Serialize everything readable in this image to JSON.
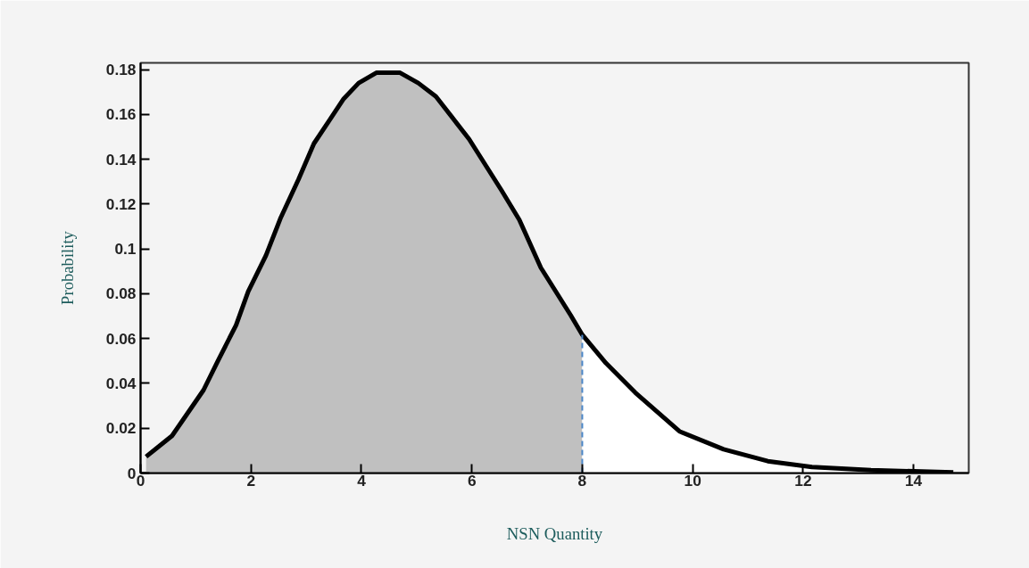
{
  "chart_data": {
    "type": "line",
    "xlabel": "NSN Quantity",
    "ylabel": "Probability",
    "xlim": [
      0,
      15
    ],
    "ylim": [
      0,
      0.183
    ],
    "xticks": [
      0,
      2,
      4,
      6,
      8,
      10,
      12,
      14
    ],
    "yticks": [
      0,
      0.02,
      0.04,
      0.06,
      0.08,
      0.1,
      0.12,
      0.14,
      0.16,
      0.18
    ],
    "grid": false,
    "marker": "none",
    "line_style": "solid",
    "series": [
      {
        "type": "area",
        "color": "#c0c0c0",
        "x": [
          0.1,
          0.57,
          1.14,
          1.4,
          1.73,
          1.95,
          2.27,
          2.54,
          2.86,
          3.14,
          3.41,
          3.68,
          3.95,
          4.27,
          4.7,
          5.03,
          5.35,
          5.95,
          6.54,
          6.86,
          7.25,
          7.79,
          8.0
        ],
        "values": [
          0.0073,
          0.0166,
          0.037,
          0.05,
          0.066,
          0.081,
          0.097,
          0.114,
          0.131,
          0.147,
          0.157,
          0.167,
          0.174,
          0.1786,
          0.1786,
          0.174,
          0.168,
          0.149,
          0.126,
          0.113,
          0.0916,
          0.0704,
          0.0617
        ]
      },
      {
        "type": "area",
        "color": "#ffffff",
        "x": [
          8.0,
          8.43,
          8.96,
          9.76,
          10.56,
          11.36,
          12.16,
          13.23,
          14.72
        ],
        "values": [
          0.0617,
          0.049,
          0.0359,
          0.0186,
          0.0106,
          0.0053,
          0.0027,
          0.0013,
          0.0003
        ]
      },
      {
        "color": "#000000",
        "x": [
          0.1,
          0.57,
          1.14,
          1.4,
          1.73,
          1.95,
          2.27,
          2.54,
          2.86,
          3.14,
          3.41,
          3.68,
          3.95,
          4.27,
          4.7,
          5.03,
          5.35,
          5.95,
          6.54,
          6.86,
          7.25,
          7.79,
          8.0,
          8.43,
          8.96,
          9.76,
          10.56,
          11.36,
          12.16,
          13.23,
          14.72
        ],
        "values": [
          0.0073,
          0.0166,
          0.037,
          0.05,
          0.066,
          0.081,
          0.097,
          0.114,
          0.131,
          0.147,
          0.157,
          0.167,
          0.174,
          0.1786,
          0.1786,
          0.174,
          0.168,
          0.149,
          0.126,
          0.113,
          0.0916,
          0.0704,
          0.0617,
          0.049,
          0.0359,
          0.0186,
          0.0106,
          0.0053,
          0.0027,
          0.0013,
          0.0003
        ]
      }
    ],
    "ref_lines": [
      {
        "axis": "x",
        "value": 8,
        "color": "#4a86c8",
        "line_style": "dashed"
      }
    ]
  }
}
